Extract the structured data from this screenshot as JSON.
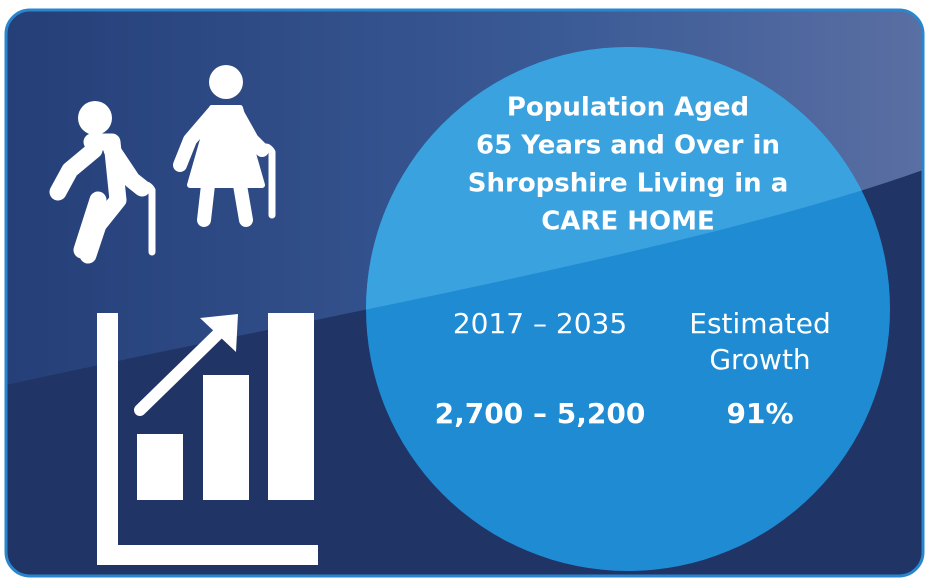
{
  "title_lines": [
    "Population Aged",
    "65 Years and Over in",
    "Shropshire Living in a",
    "CARE HOME"
  ],
  "period": "2017 – 2035",
  "growth_label_lines": [
    "Estimated",
    "Growth"
  ],
  "range": "2,700 – 5,200",
  "growth": "91%"
}
